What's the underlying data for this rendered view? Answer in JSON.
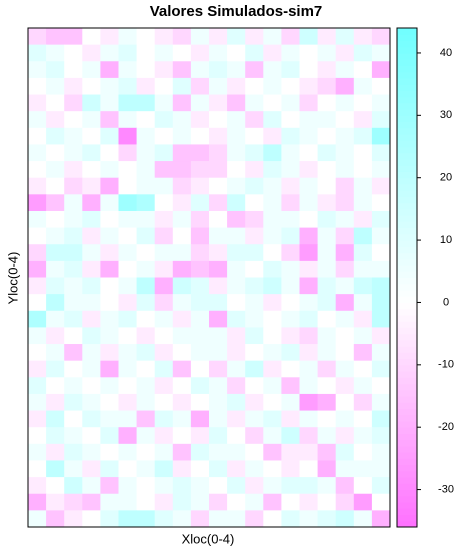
{
  "chart_data": {
    "type": "heatmap",
    "title": "Valores Simulados-sim7",
    "xlabel": "Xloc(0-4)",
    "ylabel": "Yloc(0-4)",
    "zlim": [
      -36,
      44
    ],
    "zticks": [
      -30,
      -20,
      -10,
      0,
      10,
      20,
      30,
      40
    ],
    "low_color": "#ff70ff",
    "mid_color": "#ffffff",
    "high_color": "#70ffff",
    "values": [
      [
        -10,
        -15,
        -15,
        0,
        -5,
        5,
        0,
        -5,
        -10,
        5,
        -5,
        10,
        -5,
        5,
        -10,
        15,
        -5,
        10,
        -5,
        -10
      ],
      [
        10,
        5,
        0,
        -5,
        5,
        10,
        0,
        5,
        0,
        -5,
        5,
        0,
        10,
        -5,
        5,
        0,
        5,
        -5,
        10,
        5
      ],
      [
        5,
        10,
        0,
        5,
        -20,
        5,
        0,
        -5,
        -15,
        5,
        10,
        5,
        -15,
        5,
        10,
        0,
        -5,
        5,
        0,
        -20
      ],
      [
        0,
        5,
        -5,
        0,
        5,
        10,
        -5,
        0,
        10,
        -10,
        5,
        -5,
        0,
        5,
        0,
        -5,
        -10,
        -20,
        5,
        0
      ],
      [
        -5,
        0,
        -10,
        15,
        5,
        20,
        20,
        5,
        -15,
        5,
        -5,
        -15,
        5,
        0,
        5,
        -10,
        0,
        5,
        0,
        5
      ],
      [
        5,
        -5,
        0,
        5,
        -15,
        5,
        0,
        10,
        5,
        -5,
        0,
        5,
        -10,
        10,
        0,
        5,
        5,
        0,
        -5,
        10
      ],
      [
        0,
        10,
        5,
        0,
        10,
        -30,
        5,
        0,
        5,
        0,
        -5,
        5,
        0,
        -5,
        10,
        5,
        0,
        5,
        10,
        30
      ],
      [
        5,
        0,
        5,
        10,
        0,
        -10,
        5,
        10,
        -15,
        -15,
        -10,
        5,
        10,
        20,
        5,
        0,
        10,
        5,
        0,
        10
      ],
      [
        0,
        5,
        -5,
        0,
        5,
        0,
        5,
        -15,
        -15,
        -10,
        -10,
        0,
        -5,
        10,
        5,
        -5,
        0,
        5,
        0,
        5
      ],
      [
        -5,
        0,
        -10,
        -5,
        -20,
        0,
        5,
        5,
        -10,
        -5,
        0,
        5,
        10,
        5,
        -5,
        5,
        0,
        -10,
        5,
        -5
      ],
      [
        -25,
        -15,
        5,
        -20,
        5,
        30,
        25,
        0,
        -5,
        10,
        -10,
        15,
        0,
        5,
        -10,
        5,
        -5,
        -10,
        5,
        0
      ],
      [
        5,
        0,
        5,
        10,
        0,
        5,
        5,
        -5,
        5,
        -10,
        0,
        -15,
        -10,
        5,
        5,
        0,
        10,
        5,
        -5,
        10
      ],
      [
        0,
        5,
        10,
        -5,
        5,
        0,
        10,
        -10,
        0,
        -15,
        5,
        5,
        -5,
        5,
        10,
        -20,
        5,
        -10,
        20,
        5
      ],
      [
        -10,
        15,
        15,
        5,
        -5,
        5,
        0,
        5,
        5,
        -10,
        -5,
        10,
        10,
        0,
        -10,
        -25,
        5,
        -20,
        10,
        0
      ],
      [
        -20,
        5,
        10,
        -5,
        -20,
        0,
        5,
        -5,
        -20,
        -15,
        -20,
        5,
        0,
        10,
        5,
        -5,
        5,
        -10,
        5,
        5
      ],
      [
        -5,
        10,
        5,
        10,
        0,
        5,
        20,
        -20,
        15,
        10,
        -5,
        5,
        10,
        15,
        5,
        -20,
        10,
        5,
        15,
        20
      ],
      [
        0,
        20,
        5,
        5,
        0,
        -5,
        10,
        -10,
        5,
        10,
        10,
        0,
        5,
        -5,
        0,
        5,
        10,
        -20,
        5,
        20
      ],
      [
        25,
        5,
        10,
        -5,
        5,
        10,
        0,
        5,
        -5,
        5,
        -20,
        10,
        5,
        0,
        5,
        10,
        0,
        5,
        -5,
        20
      ],
      [
        5,
        -5,
        0,
        10,
        5,
        0,
        -5,
        0,
        5,
        5,
        5,
        -5,
        10,
        0,
        -5,
        -10,
        5,
        0,
        5,
        -5
      ],
      [
        0,
        5,
        -15,
        5,
        -5,
        5,
        10,
        -5,
        0,
        5,
        5,
        -5,
        0,
        5,
        10,
        -5,
        5,
        0,
        -15,
        5
      ],
      [
        -5,
        10,
        0,
        5,
        -20,
        5,
        0,
        10,
        -15,
        0,
        -10,
        5,
        15,
        -5,
        0,
        5,
        -10,
        5,
        0,
        10
      ],
      [
        10,
        0,
        5,
        0,
        5,
        0,
        5,
        -5,
        0,
        10,
        5,
        -10,
        0,
        5,
        -15,
        5,
        0,
        -5,
        5,
        0
      ],
      [
        5,
        -5,
        10,
        5,
        0,
        -5,
        5,
        0,
        -5,
        0,
        5,
        10,
        -5,
        0,
        5,
        -25,
        -20,
        0,
        -10,
        5
      ],
      [
        -5,
        15,
        0,
        10,
        5,
        5,
        -15,
        10,
        5,
        -20,
        5,
        -5,
        5,
        10,
        -5,
        5,
        0,
        5,
        0,
        15
      ],
      [
        0,
        10,
        5,
        0,
        10,
        -20,
        5,
        -5,
        0,
        -5,
        10,
        0,
        -10,
        5,
        15,
        -10,
        5,
        -5,
        5,
        10
      ],
      [
        5,
        -5,
        10,
        5,
        0,
        5,
        0,
        5,
        -15,
        10,
        5,
        5,
        0,
        -15,
        -5,
        -5,
        -15,
        10,
        0,
        5
      ],
      [
        0,
        20,
        5,
        -5,
        10,
        0,
        5,
        15,
        -5,
        0,
        10,
        -5,
        5,
        0,
        -5,
        0,
        -20,
        5,
        5,
        5
      ],
      [
        -5,
        0,
        15,
        5,
        -15,
        5,
        0,
        5,
        10,
        5,
        0,
        10,
        -5,
        5,
        10,
        10,
        5,
        -15,
        0,
        10
      ],
      [
        -20,
        -5,
        -10,
        -15,
        5,
        5,
        0,
        -5,
        10,
        5,
        -10,
        0,
        5,
        -15,
        0,
        -5,
        0,
        -10,
        -25,
        0
      ],
      [
        5,
        -15,
        -5,
        0,
        10,
        20,
        20,
        10,
        5,
        -10,
        5,
        5,
        -10,
        0,
        10,
        5,
        10,
        15,
        5,
        -20
      ]
    ]
  }
}
